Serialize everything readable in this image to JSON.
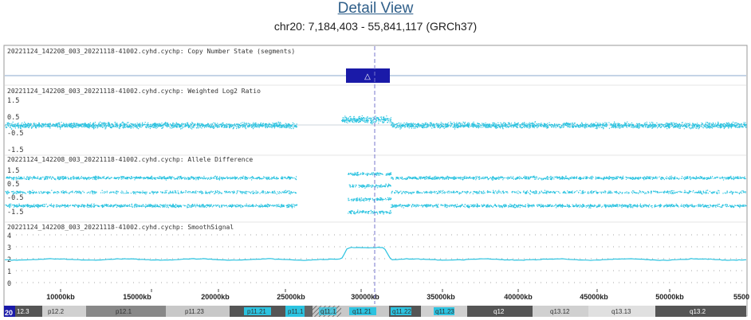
{
  "header": {
    "title": "Detail View",
    "region": "chr20: 7,184,403 - 55,841,117 (GRCh37)"
  },
  "colors": {
    "signal": "#2cc3e0",
    "segment": "#1a1aa8",
    "cursor": "#7777cc",
    "baseline": "#88aacc",
    "frame": "#999999"
  },
  "icons": {
    "segment_marker": "triangle-up-icon"
  },
  "tracks": [
    {
      "label": "20221124_142208_003_20221118-41002.cyhd.cychp: Copy Number State (segments)",
      "ticks": []
    },
    {
      "label": "20221124_142208_003_20221118-41002.cyhd.cychp: Weighted Log2 Ratio",
      "ticks": [
        "1.5",
        "0.5",
        "-0.5",
        "-1.5"
      ]
    },
    {
      "label": "20221124_142208_003_20221118-41002.cyhd.cychp: Allele Difference",
      "ticks": [
        "1.5",
        "0.5",
        "-0.5",
        "-1.5"
      ]
    },
    {
      "label": "20221124_142208_003_20221118-41002.cyhd.cychp: SmoothSignal",
      "ticks": [
        "4",
        "3",
        "2",
        "1",
        "0"
      ]
    }
  ],
  "segment_marker_glyph": "△",
  "position_axis": [
    "10000kb",
    "15000kb",
    "20000kb",
    "25000kb",
    "30000kb",
    "35000kb",
    "40000kb",
    "45000kb",
    "50000kb",
    "5500"
  ],
  "chromosome": {
    "number": "20",
    "bands": [
      "12.3",
      "p12.2",
      "p12.1",
      "p11.23",
      "p11.21",
      "p11.1",
      "q11.1",
      "q11.21",
      "q11.22",
      "q11.23",
      "q12",
      "q13.12",
      "q13.13",
      "q13.2"
    ]
  }
}
